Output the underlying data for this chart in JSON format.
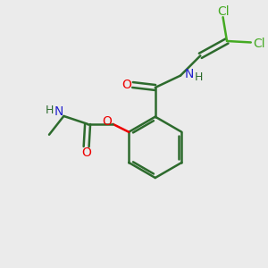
{
  "bg_color": "#ebebeb",
  "bond_color": "#2d6b2d",
  "atom_colors": {
    "O": "#ee0000",
    "N": "#2222cc",
    "Cl": "#44aa22",
    "H": "#2d6b2d",
    "C": "#2d6b2d"
  }
}
